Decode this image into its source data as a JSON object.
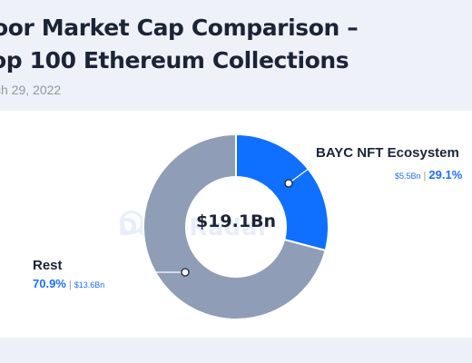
{
  "title_line1": "oor Market Cap Comparison –",
  "title_line2": "op 100 Ethereum Collections",
  "date": "ch 29, 2022",
  "watermark": "DappRadar",
  "colors": {
    "bayc": "#0f6fff",
    "rest": "#8f9db6",
    "text": "#1c2437",
    "accent": "#1f6ff0"
  },
  "chart_data": {
    "type": "pie",
    "style": "donut",
    "center_label": "$19.1Bn",
    "slices": [
      {
        "name": "BAYC NFT Ecosystem",
        "value_label": "$5.5Bn",
        "value": 5.5,
        "percent_label": "29.1%",
        "percent": 29.1
      },
      {
        "name": "Rest",
        "value_label": "$13.6Bn",
        "value": 13.6,
        "percent_label": "70.9%",
        "percent": 70.9
      }
    ]
  }
}
